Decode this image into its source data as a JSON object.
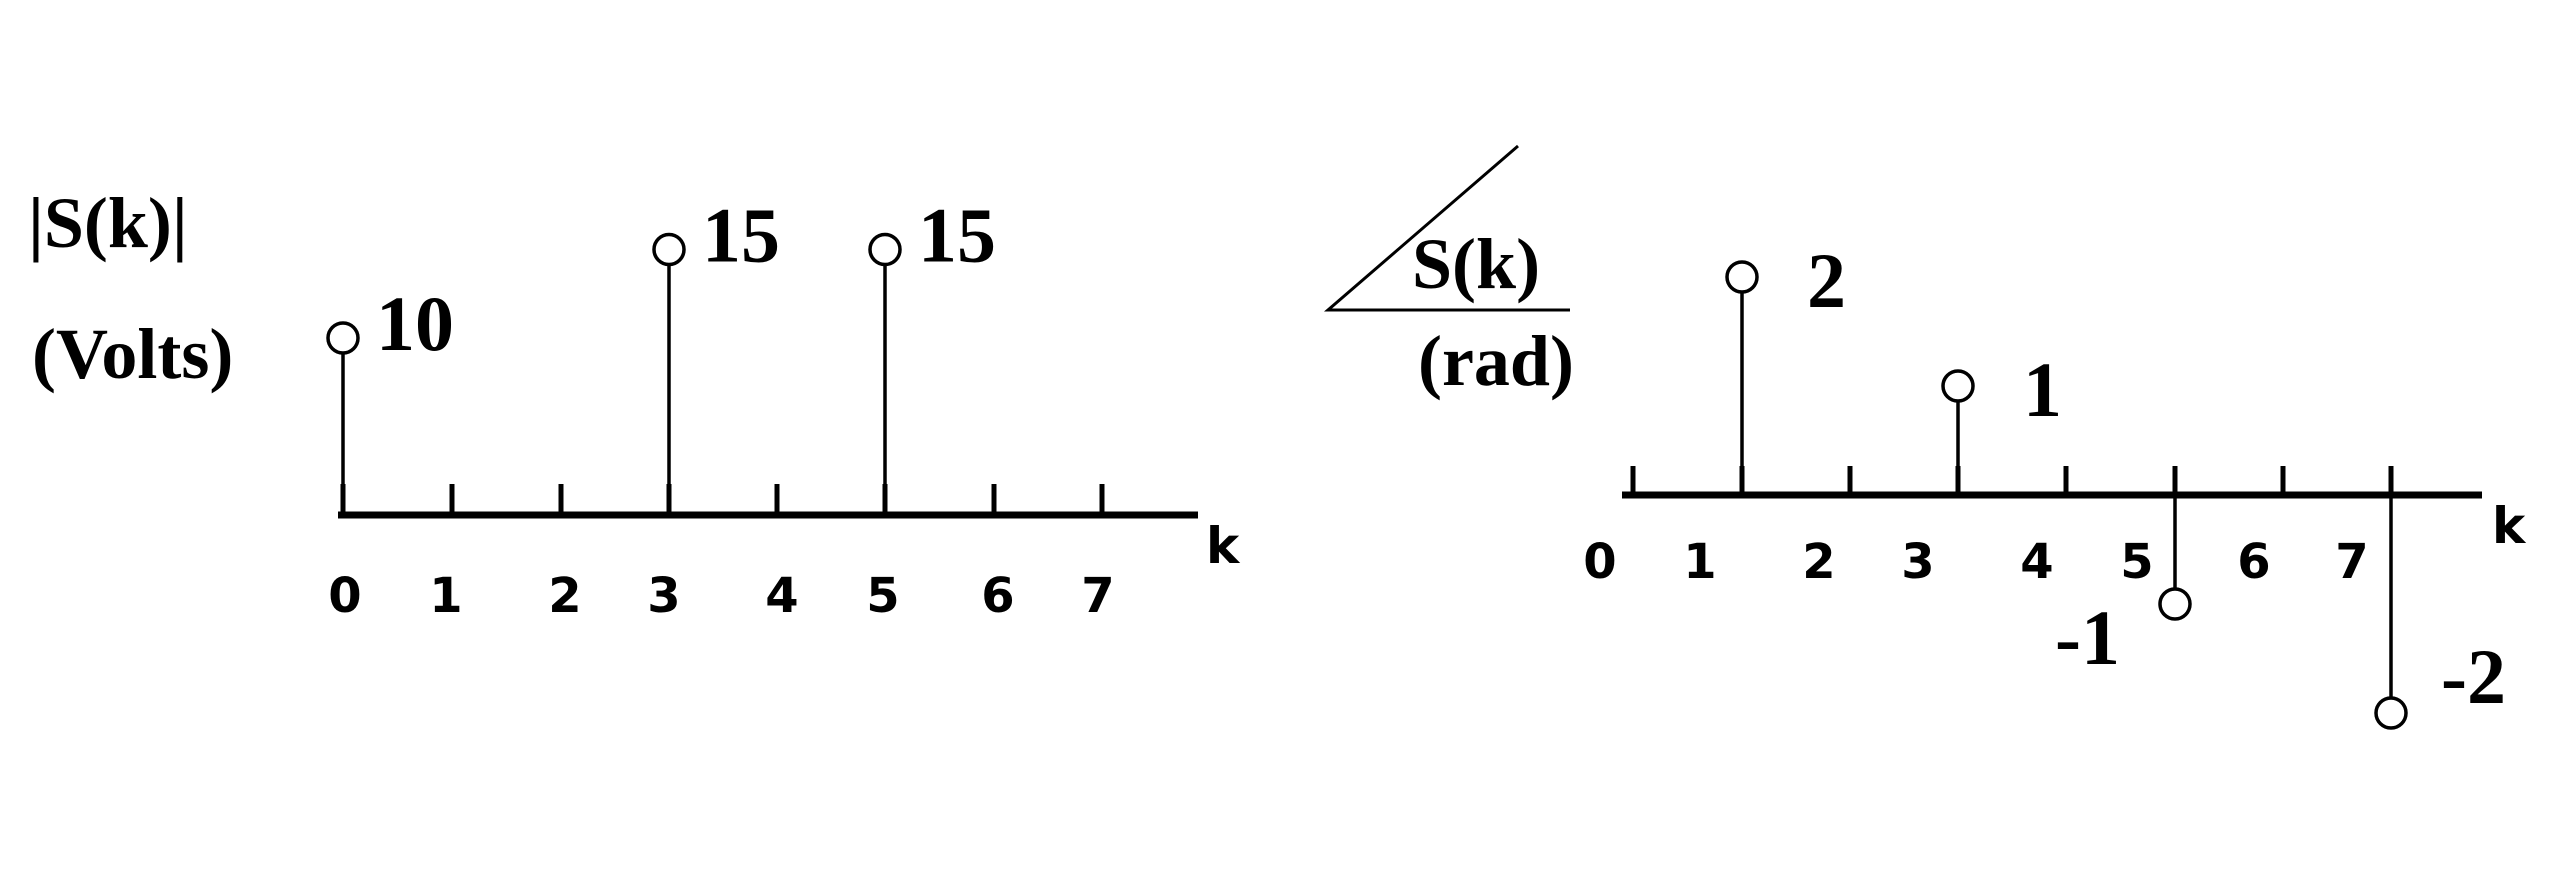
{
  "chart_data": [
    {
      "type": "stem",
      "ylabel_line1": "|S(k)|",
      "ylabel_line2": "(Volts)",
      "xlabel": "k",
      "x_ticks": [
        "0",
        "1",
        "2",
        "3",
        "4",
        "5",
        "6",
        "7"
      ],
      "points": [
        {
          "k": 0,
          "value": 10,
          "label": "10"
        },
        {
          "k": 3,
          "value": 15,
          "label": "15"
        },
        {
          "k": 5,
          "value": 15,
          "label": "15"
        }
      ]
    },
    {
      "type": "stem",
      "ylabel_line1": "S(k)",
      "ylabel_line2": "(rad)",
      "ylabel_prefix_symbol": "angle",
      "xlabel": "k",
      "x_ticks": [
        "0",
        "1",
        "2",
        "3",
        "4",
        "5",
        "6",
        "7"
      ],
      "points": [
        {
          "k": 1,
          "value": 2,
          "label": "2"
        },
        {
          "k": 3,
          "value": 1,
          "label": "1"
        },
        {
          "k": 5,
          "value": -1,
          "label": "-1"
        },
        {
          "k": 7,
          "value": -2,
          "label": "-2"
        }
      ]
    }
  ]
}
